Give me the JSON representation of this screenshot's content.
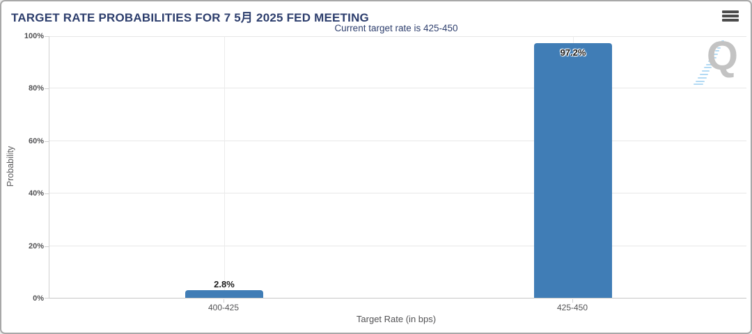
{
  "chart_data": {
    "type": "bar",
    "title": "TARGET RATE PROBABILITIES FOR 7 5月 2025 FED MEETING",
    "subtitle": "Current target rate is 425-450",
    "categories": [
      "400-425",
      "425-450"
    ],
    "values": [
      2.8,
      97.2
    ],
    "value_labels": [
      "2.8%",
      "97.2%"
    ],
    "xlabel": "Target Rate (in bps)",
    "ylabel": "Probability",
    "ylim": [
      0,
      100
    ],
    "yticks": [
      0,
      20,
      40,
      60,
      80,
      100
    ],
    "ytick_labels": [
      "0%",
      "20%",
      "40%",
      "60%",
      "80%",
      "100%"
    ],
    "grid": true,
    "legend_position": "none",
    "bar_color": "#407db6"
  },
  "header": {
    "menu_icon": "hamburger-menu-icon"
  },
  "watermark": {
    "letter": "Q",
    "accent_color": "#b3daf4",
    "letter_color": "#c3c3c3"
  },
  "colors": {
    "title_text": "#2d3e6d",
    "axis_text": "#525254",
    "gridline": "#e7e7e7",
    "axis_line": "#cfcfcf",
    "card_border": "#a8a8a8"
  }
}
